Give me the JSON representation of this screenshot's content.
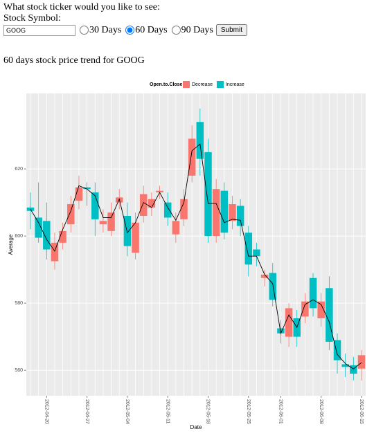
{
  "form": {
    "prompt": "What stock ticker would you like to see:",
    "symbol_label": "Stock Symbol:",
    "symbol_value": "GOOG",
    "options": [
      "30 Days",
      "60 Days",
      "90 Days"
    ],
    "selected": 1,
    "submit": "Submit"
  },
  "heading": "60 days stock price trend for GOOG",
  "chart_data": {
    "type": "candlestick",
    "xlabel": "Date",
    "ylabel": "Average",
    "categories": [
      null,
      null,
      "2012-04-20",
      null,
      null,
      null,
      null,
      "2012-04-27",
      null,
      null,
      null,
      null,
      "2012-05-04",
      null,
      null,
      null,
      null,
      "2012-05-11",
      null,
      null,
      null,
      null,
      "2012-05-18",
      null,
      null,
      null,
      null,
      "2012-05-25",
      null,
      null,
      null,
      "2012-06-01",
      null,
      null,
      null,
      null,
      "2012-06-08",
      null,
      null,
      null,
      null,
      "2012-06-15"
    ],
    "open": [
      607.5,
      599.5,
      596,
      598,
      601.5,
      609.5,
      614.5,
      614,
      605,
      604.5,
      607,
      611.5,
      597,
      604,
      612.5,
      611,
      613.5,
      605.5,
      604.5,
      611,
      629,
      623,
      600,
      614,
      601,
      609.5,
      603,
      591.5,
      594,
      588.5,
      581,
      571,
      578.5,
      570,
      580.5,
      578.5,
      580.5,
      568.5,
      563,
      561,
      559,
      564.5
    ],
    "close": [
      608.5,
      605.5,
      604.5,
      592.5,
      598,
      603.5,
      610.5,
      614.5,
      613,
      603.5,
      601.5,
      610,
      606,
      595,
      606,
      608.5,
      613,
      610,
      600.5,
      605,
      618,
      634,
      625,
      600,
      613.5,
      604.5,
      609,
      601,
      596,
      587.5,
      589,
      572.5,
      570,
      575.5,
      576,
      587.5,
      575.5,
      584.5,
      569,
      561.8,
      561.5,
      560.5
    ],
    "high": [
      613,
      616,
      610,
      601,
      604,
      612,
      618,
      616,
      616,
      608,
      610,
      614,
      610,
      607,
      615,
      613,
      615,
      613,
      607,
      614,
      633,
      638,
      629,
      617,
      616,
      612,
      611,
      603,
      598,
      590,
      592,
      575,
      580,
      578,
      583,
      589,
      583,
      588,
      571,
      565,
      564,
      566
    ],
    "low": [
      602,
      598,
      593,
      590,
      596,
      601,
      608,
      609,
      600,
      601,
      600,
      608,
      594,
      593,
      604,
      606,
      611,
      603,
      598,
      603,
      616,
      618,
      598,
      598,
      599,
      602,
      600,
      588,
      591,
      585,
      579,
      568,
      567,
      567,
      574,
      576,
      573,
      566,
      559,
      558,
      557,
      557
    ],
    "average": [
      608,
      604,
      599,
      595.5,
      602,
      607.5,
      615,
      614,
      612,
      605.5,
      605.5,
      611,
      601,
      604,
      610,
      608.5,
      613,
      608.5,
      604.7,
      610,
      625.4,
      627.4,
      609.7,
      609.7,
      604,
      605,
      604.7,
      594,
      594,
      588.5,
      585.8,
      571,
      576.5,
      572.8,
      579.6,
      581,
      579.6,
      574.4,
      564.7,
      562,
      560.4,
      562.3
    ],
    "line_color": "#000000",
    "legend": {
      "title": "Open.to.Close",
      "entries": [
        {
          "name": "Decrease",
          "color": "#F8766D"
        },
        {
          "name": "Increase",
          "color": "#00BFC4"
        }
      ]
    },
    "ylim": [
      552.4,
      642.5
    ],
    "yticks": [
      560,
      580,
      600,
      620
    ],
    "grid": true
  }
}
